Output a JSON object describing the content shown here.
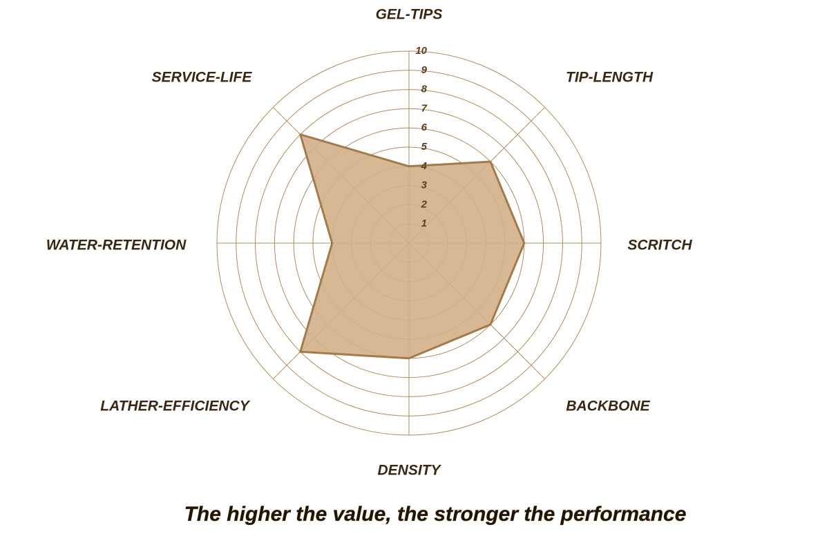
{
  "chart_data": {
    "type": "radar",
    "categories": [
      "GEL-TIPS",
      "TIP-LENGTH",
      "SCRITCH",
      "BACKBONE",
      "DENSITY",
      "LATHER-EFFICIENCY",
      "WATER-RETENTION",
      "SERVICE-LIFE"
    ],
    "values": [
      4,
      6,
      6,
      6,
      6,
      8,
      4,
      8
    ],
    "color": "#d2b08a",
    "line_color": "#a37a48",
    "grid_color": "#b68a57",
    "rlim": [
      0,
      10
    ],
    "rticks": [
      1,
      2,
      3,
      4,
      5,
      6,
      7,
      8,
      9,
      10
    ],
    "grid": true,
    "caption": "The higher the value, the stronger the performance"
  }
}
